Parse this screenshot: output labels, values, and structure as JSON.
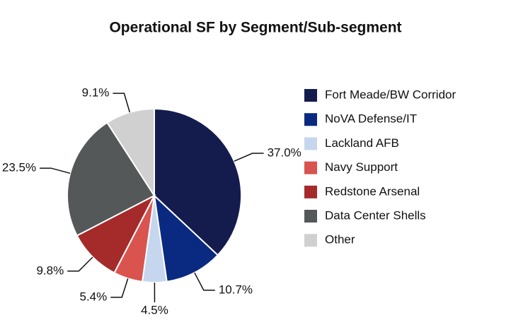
{
  "chart_data": {
    "type": "pie",
    "title": "Operational SF by Segment/Sub-segment",
    "categories": [
      "Fort Meade/BW Corridor",
      "NoVA Defense/IT",
      "Lackland AFB",
      "Navy Support",
      "Redstone Arsenal",
      "Data Center Shells",
      "Other"
    ],
    "values": [
      37.0,
      10.7,
      4.5,
      5.4,
      9.8,
      23.5,
      9.1
    ],
    "value_labels": [
      "37.0%",
      "10.7%",
      "4.5%",
      "5.4%",
      "9.8%",
      "23.5%",
      "9.1%"
    ],
    "colors": [
      "#141c4e",
      "#0a2a82",
      "#c5d6ee",
      "#d9534f",
      "#a52a2a",
      "#545859",
      "#d0d0d0"
    ],
    "legend": "right"
  }
}
